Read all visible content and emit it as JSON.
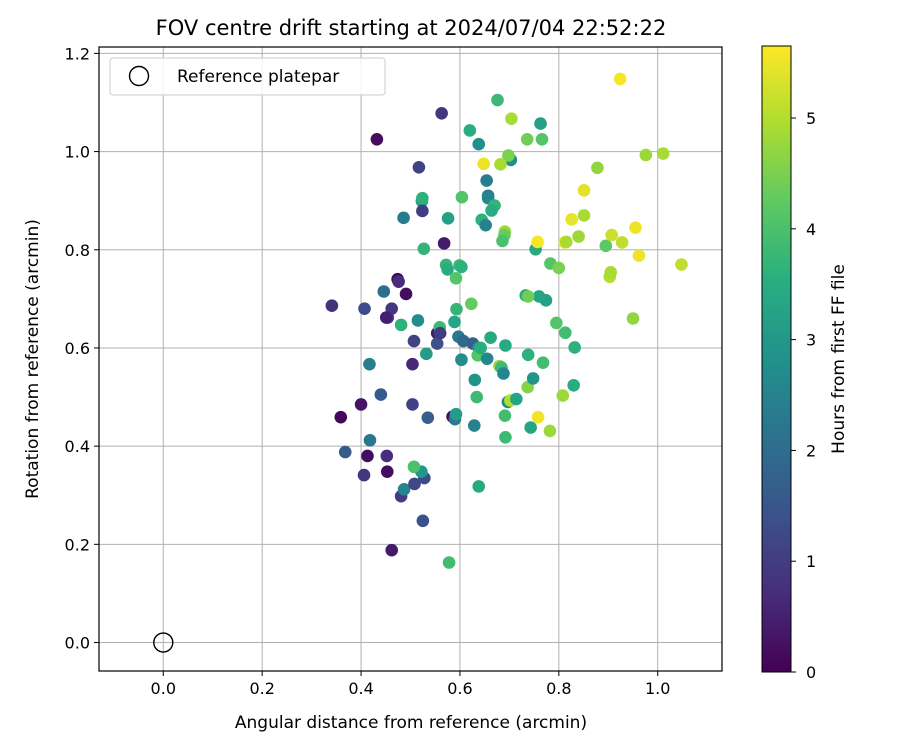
{
  "chart_data": {
    "type": "scatter",
    "title": "FOV centre drift starting at 2024/07/04 22:52:22",
    "xlabel": "Angular distance from reference (arcmin)",
    "ylabel": "Rotation from reference (arcmin)",
    "xlim": [
      -0.13,
      1.13
    ],
    "ylim": [
      -0.058,
      1.213
    ],
    "xticks": [
      0.0,
      0.2,
      0.4,
      0.6,
      0.8,
      1.0
    ],
    "xtick_labels": [
      "0.0",
      "0.2",
      "0.4",
      "0.6",
      "0.8",
      "1.0"
    ],
    "yticks": [
      0.0,
      0.2,
      0.4,
      0.6,
      0.8,
      1.0,
      1.2
    ],
    "ytick_labels": [
      "0.0",
      "0.2",
      "0.4",
      "0.6",
      "0.8",
      "1.0",
      "1.2"
    ],
    "grid": true,
    "legend": {
      "position": "upper-left",
      "entries": [
        {
          "label": "Reference platepar",
          "marker": "open-circle",
          "x": 0.0,
          "y": 0.0
        }
      ]
    },
    "colorbar": {
      "label": "Hours from first FF file",
      "colormap": "viridis",
      "range": [
        0,
        5.65
      ],
      "ticks": [
        0,
        1,
        2,
        3,
        4,
        5
      ],
      "tick_labels": [
        "0",
        "1",
        "2",
        "3",
        "4",
        "5"
      ]
    },
    "series": [
      {
        "points": [
          [
            0.462,
            0.188,
            0.4
          ],
          [
            0.578,
            0.163,
            3.9
          ],
          [
            0.525,
            0.248,
            1.4
          ],
          [
            0.481,
            0.298,
            1.0
          ],
          [
            0.487,
            0.312,
            2.5
          ],
          [
            0.508,
            0.323,
            1.2
          ],
          [
            0.528,
            0.335,
            1.3
          ],
          [
            0.522,
            0.348,
            3.0
          ],
          [
            0.507,
            0.358,
            4.0
          ],
          [
            0.453,
            0.348,
            0.2
          ],
          [
            0.406,
            0.341,
            0.9
          ],
          [
            0.413,
            0.38,
            0.2
          ],
          [
            0.452,
            0.38,
            0.7
          ],
          [
            0.418,
            0.412,
            2.2
          ],
          [
            0.368,
            0.388,
            1.6
          ],
          [
            0.359,
            0.459,
            0.1
          ],
          [
            0.4,
            0.485,
            0.3
          ],
          [
            0.44,
            0.505,
            1.6
          ],
          [
            0.504,
            0.485,
            1.1
          ],
          [
            0.535,
            0.458,
            1.7
          ],
          [
            0.585,
            0.46,
            0.2
          ],
          [
            0.59,
            0.455,
            2.3
          ],
          [
            0.592,
            0.465,
            3.1
          ],
          [
            0.629,
            0.442,
            2.5
          ],
          [
            0.634,
            0.5,
            3.8
          ],
          [
            0.638,
            0.318,
            3.4
          ],
          [
            0.692,
            0.418,
            3.8
          ],
          [
            0.691,
            0.462,
            3.9
          ],
          [
            0.697,
            0.49,
            2.6
          ],
          [
            0.702,
            0.493,
            5.0
          ],
          [
            0.714,
            0.496,
            3.3
          ],
          [
            0.743,
            0.438,
            3.3
          ],
          [
            0.782,
            0.431,
            4.8
          ],
          [
            0.758,
            0.459,
            5.55
          ],
          [
            0.737,
            0.52,
            4.6
          ],
          [
            0.748,
            0.538,
            2.9
          ],
          [
            0.768,
            0.57,
            3.9
          ],
          [
            0.738,
            0.586,
            3.6
          ],
          [
            0.808,
            0.503,
            4.8
          ],
          [
            0.83,
            0.524,
            3.5
          ],
          [
            0.832,
            0.601,
            3.6
          ],
          [
            0.813,
            0.631,
            3.9
          ],
          [
            0.795,
            0.651,
            4.1
          ],
          [
            0.774,
            0.697,
            3.2
          ],
          [
            0.76,
            0.705,
            3.3
          ],
          [
            0.733,
            0.707,
            3.5
          ],
          [
            0.738,
            0.705,
            4.4
          ],
          [
            0.753,
            0.801,
            3.4
          ],
          [
            0.757,
            0.816,
            5.6
          ],
          [
            0.783,
            0.772,
            4.1
          ],
          [
            0.8,
            0.763,
            4.5
          ],
          [
            0.812,
            0.815,
            5.5
          ],
          [
            0.815,
            0.816,
            4.9
          ],
          [
            0.84,
            0.827,
            4.8
          ],
          [
            0.826,
            0.862,
            5.45
          ],
          [
            0.851,
            0.87,
            4.9
          ],
          [
            0.851,
            0.921,
            5.4
          ],
          [
            0.878,
            0.967,
            4.7
          ],
          [
            0.895,
            0.808,
            4.2
          ],
          [
            0.903,
            0.745,
            5.0
          ],
          [
            0.905,
            0.754,
            4.9
          ],
          [
            0.907,
            0.83,
            5.2
          ],
          [
            0.928,
            0.815,
            5.1
          ],
          [
            0.95,
            0.66,
            4.7
          ],
          [
            0.955,
            0.845,
            5.5
          ],
          [
            0.962,
            0.788,
            5.5
          ],
          [
            0.976,
            0.993,
            4.8
          ],
          [
            1.011,
            0.996,
            4.9
          ],
          [
            1.048,
            0.77,
            5.1
          ],
          [
            0.924,
            1.148,
            5.6
          ],
          [
            0.766,
            1.025,
            4.1
          ],
          [
            0.736,
            1.025,
            4.4
          ],
          [
            0.763,
            1.057,
            3.2
          ],
          [
            0.704,
            1.067,
            4.9
          ],
          [
            0.676,
            1.105,
            3.8
          ],
          [
            0.62,
            1.043,
            3.5
          ],
          [
            0.638,
            1.015,
            2.8
          ],
          [
            0.703,
            0.983,
            2.7
          ],
          [
            0.698,
            0.992,
            4.5
          ],
          [
            0.682,
            0.974,
            4.9
          ],
          [
            0.648,
            0.975,
            5.5
          ],
          [
            0.654,
            0.941,
            2.4
          ],
          [
            0.657,
            0.91,
            2.4
          ],
          [
            0.657,
            0.905,
            2.6
          ],
          [
            0.67,
            0.89,
            3.7
          ],
          [
            0.664,
            0.88,
            3.5
          ],
          [
            0.644,
            0.861,
            3.6
          ],
          [
            0.652,
            0.85,
            2.5
          ],
          [
            0.691,
            0.837,
            4.8
          ],
          [
            0.69,
            0.83,
            4.3
          ],
          [
            0.686,
            0.818,
            4.0
          ],
          [
            0.604,
            0.907,
            4.1
          ],
          [
            0.576,
            0.864,
            3.2
          ],
          [
            0.523,
            0.899,
            3.2
          ],
          [
            0.524,
            0.905,
            3.6
          ],
          [
            0.486,
            0.865,
            2.3
          ],
          [
            0.524,
            0.879,
            1.0
          ],
          [
            0.527,
            0.802,
            3.7
          ],
          [
            0.568,
            0.813,
            0.4
          ],
          [
            0.599,
            0.768,
            3.8
          ],
          [
            0.603,
            0.765,
            3.6
          ],
          [
            0.572,
            0.769,
            3.7
          ],
          [
            0.575,
            0.76,
            3.5
          ],
          [
            0.592,
            0.742,
            4.1
          ],
          [
            0.474,
            0.74,
            0.1
          ],
          [
            0.476,
            0.735,
            0.7
          ],
          [
            0.491,
            0.71,
            0.2
          ],
          [
            0.446,
            0.715,
            2.0
          ],
          [
            0.462,
            0.68,
            0.9
          ],
          [
            0.407,
            0.68,
            1.3
          ],
          [
            0.341,
            0.686,
            0.8
          ],
          [
            0.454,
            0.662,
            0.9
          ],
          [
            0.451,
            0.662,
            0.5
          ],
          [
            0.481,
            0.647,
            3.6
          ],
          [
            0.515,
            0.656,
            2.7
          ],
          [
            0.507,
            0.614,
            1.1
          ],
          [
            0.554,
            0.63,
            0.4
          ],
          [
            0.559,
            0.642,
            3.8
          ],
          [
            0.554,
            0.609,
            1.4
          ],
          [
            0.532,
            0.588,
            3.1
          ],
          [
            0.593,
            0.679,
            3.7
          ],
          [
            0.623,
            0.69,
            4.3
          ],
          [
            0.589,
            0.653,
            3.3
          ],
          [
            0.597,
            0.623,
            2.3
          ],
          [
            0.607,
            0.614,
            1.9
          ],
          [
            0.626,
            0.609,
            1.7
          ],
          [
            0.603,
            0.576,
            2.7
          ],
          [
            0.63,
            0.535,
            2.9
          ],
          [
            0.638,
            0.6,
            3.0
          ],
          [
            0.636,
            0.585,
            4.1
          ],
          [
            0.642,
            0.6,
            3.5
          ],
          [
            0.655,
            0.578,
            2.6
          ],
          [
            0.662,
            0.621,
            3.4
          ],
          [
            0.68,
            0.563,
            4.7
          ],
          [
            0.684,
            0.56,
            3.8
          ],
          [
            0.688,
            0.548,
            2.6
          ],
          [
            0.692,
            0.605,
            3.4
          ],
          [
            0.504,
            0.567,
            0.6
          ],
          [
            0.417,
            0.567,
            2.4
          ],
          [
            0.56,
            0.63,
            1.0
          ],
          [
            0.432,
            1.025,
            0.2
          ],
          [
            0.563,
            1.078,
            0.9
          ],
          [
            0.517,
            0.968,
            1.1
          ]
        ]
      }
    ]
  }
}
